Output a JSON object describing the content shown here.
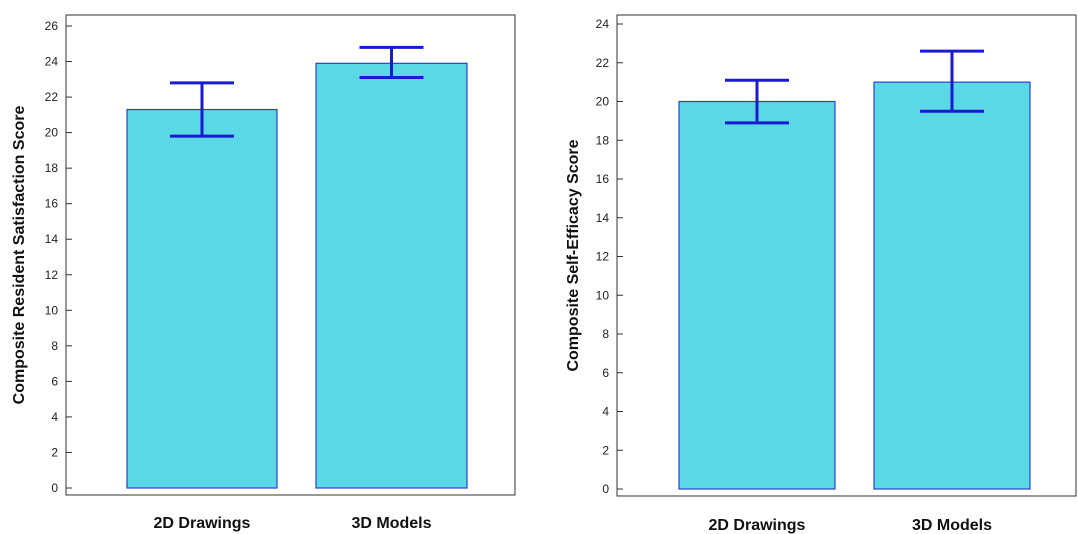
{
  "chart_data": [
    {
      "type": "bar",
      "categories": [
        "2D Drawings",
        "3D Models"
      ],
      "values": [
        21.3,
        23.9
      ],
      "error_low": [
        19.8,
        23.1
      ],
      "error_high": [
        22.8,
        24.8
      ],
      "ylabel": "Composite Resident Satisfaction Score",
      "xlabel": "",
      "ylim": [
        0,
        26
      ],
      "yticks": [
        0,
        2,
        4,
        6,
        8,
        10,
        12,
        14,
        16,
        18,
        20,
        22,
        24,
        26
      ],
      "grid": false,
      "bar_color": "#5ad8e6",
      "bar_edge_color": "#2a3fd0",
      "error_color": "#1a1ad0"
    },
    {
      "type": "bar",
      "categories": [
        "2D Drawings",
        "3D Models"
      ],
      "values": [
        20.0,
        21.0
      ],
      "error_low": [
        18.9,
        19.5
      ],
      "error_high": [
        21.1,
        22.6
      ],
      "ylabel": "Composite Self-Efficacy Score",
      "xlabel": "",
      "ylim": [
        0,
        24
      ],
      "yticks": [
        0,
        2,
        4,
        6,
        8,
        10,
        12,
        14,
        16,
        18,
        20,
        22,
        24
      ],
      "grid": false,
      "bar_color": "#5ad8e6",
      "bar_edge_color": "#2a3fd0",
      "error_color": "#1a1ad0"
    }
  ]
}
